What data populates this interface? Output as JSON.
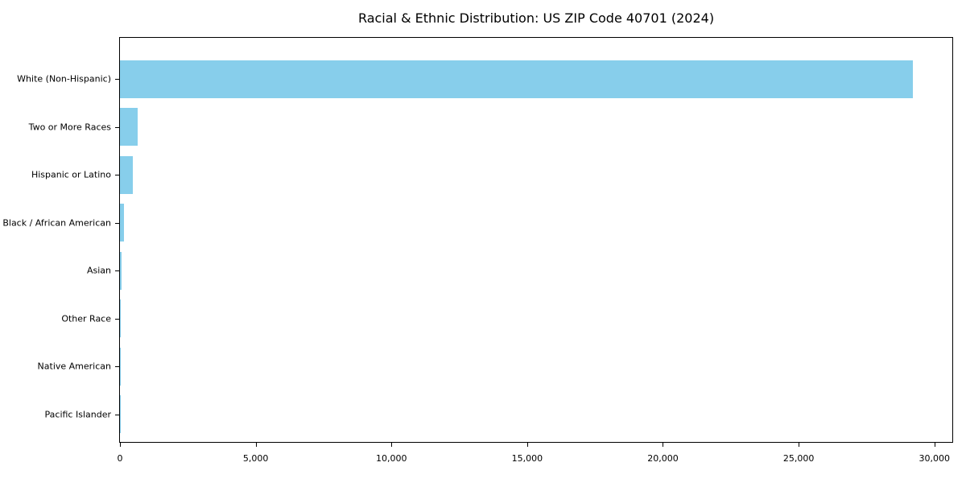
{
  "chart_data": {
    "type": "bar",
    "orientation": "horizontal",
    "title": "Racial & Ethnic Distribution: US ZIP Code 40701 (2024)",
    "categories": [
      "White (Non-Hispanic)",
      "Two or More Races",
      "Hispanic or Latino",
      "Black / African American",
      "Asian",
      "Other Race",
      "Native American",
      "Pacific Islander"
    ],
    "values": [
      29200,
      650,
      470,
      150,
      45,
      30,
      15,
      8
    ],
    "xlabel": "",
    "ylabel": "",
    "xlim": [
      0,
      30660
    ],
    "x_ticks": [
      0,
      5000,
      10000,
      15000,
      20000,
      25000,
      30000
    ],
    "x_tick_labels": [
      "0",
      "5,000",
      "10,000",
      "15,000",
      "20,000",
      "25,000",
      "30,000"
    ],
    "bar_color": "#87CEEB",
    "background_color": "#ffffff",
    "axis_color": "#000000",
    "text_color": "#000000",
    "grid": false,
    "legend": null
  }
}
